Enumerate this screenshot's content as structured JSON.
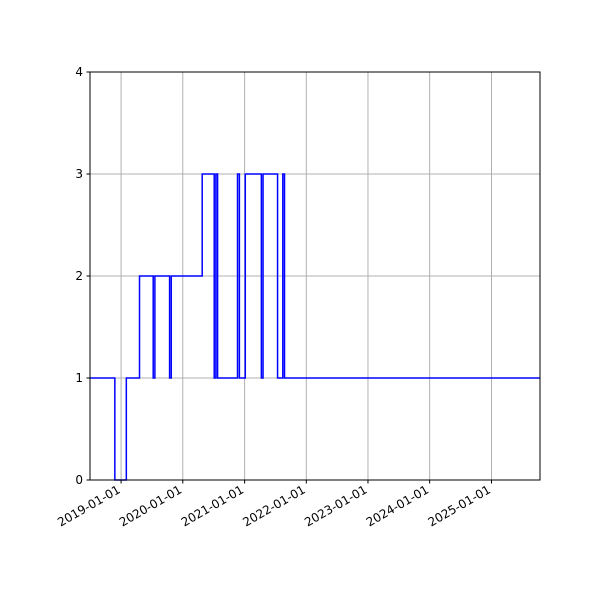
{
  "chart_data": {
    "type": "line",
    "title": "",
    "xlabel": "",
    "ylabel": "",
    "x_axis_type": "date",
    "xlim": [
      "2018-07-01",
      "2025-10-15"
    ],
    "ylim": [
      0,
      4
    ],
    "x_ticks": [
      "2019-01-01",
      "2020-01-01",
      "2021-01-01",
      "2022-01-01",
      "2023-01-01",
      "2024-01-01",
      "2025-01-01"
    ],
    "y_ticks": [
      "0",
      "1",
      "2",
      "3",
      "4"
    ],
    "grid": true,
    "legend": "none",
    "line_style": "steps",
    "series": [
      {
        "color": "#0000ff",
        "x": [
          "2018-07-01",
          "2018-11-25",
          "2019-02-01",
          "2019-04-20",
          "2019-07-10",
          "2019-07-20",
          "2019-10-15",
          "2019-10-25",
          "2020-04-25",
          "2020-07-05",
          "2020-07-15",
          "2020-07-25",
          "2020-11-20",
          "2020-12-01",
          "2021-01-05",
          "2021-04-10",
          "2021-04-20",
          "2021-07-15",
          "2021-08-15",
          "2021-08-25",
          "2025-10-15"
        ],
        "y": [
          1,
          0,
          1,
          2,
          1,
          2,
          1,
          2,
          3,
          1,
          3,
          1,
          3,
          1,
          3,
          1,
          3,
          1,
          3,
          1,
          1
        ]
      }
    ]
  },
  "colors": {
    "series_line": "#0000ff",
    "grid": "#b0b0b0",
    "axes": "#000000",
    "background": "#ffffff"
  }
}
